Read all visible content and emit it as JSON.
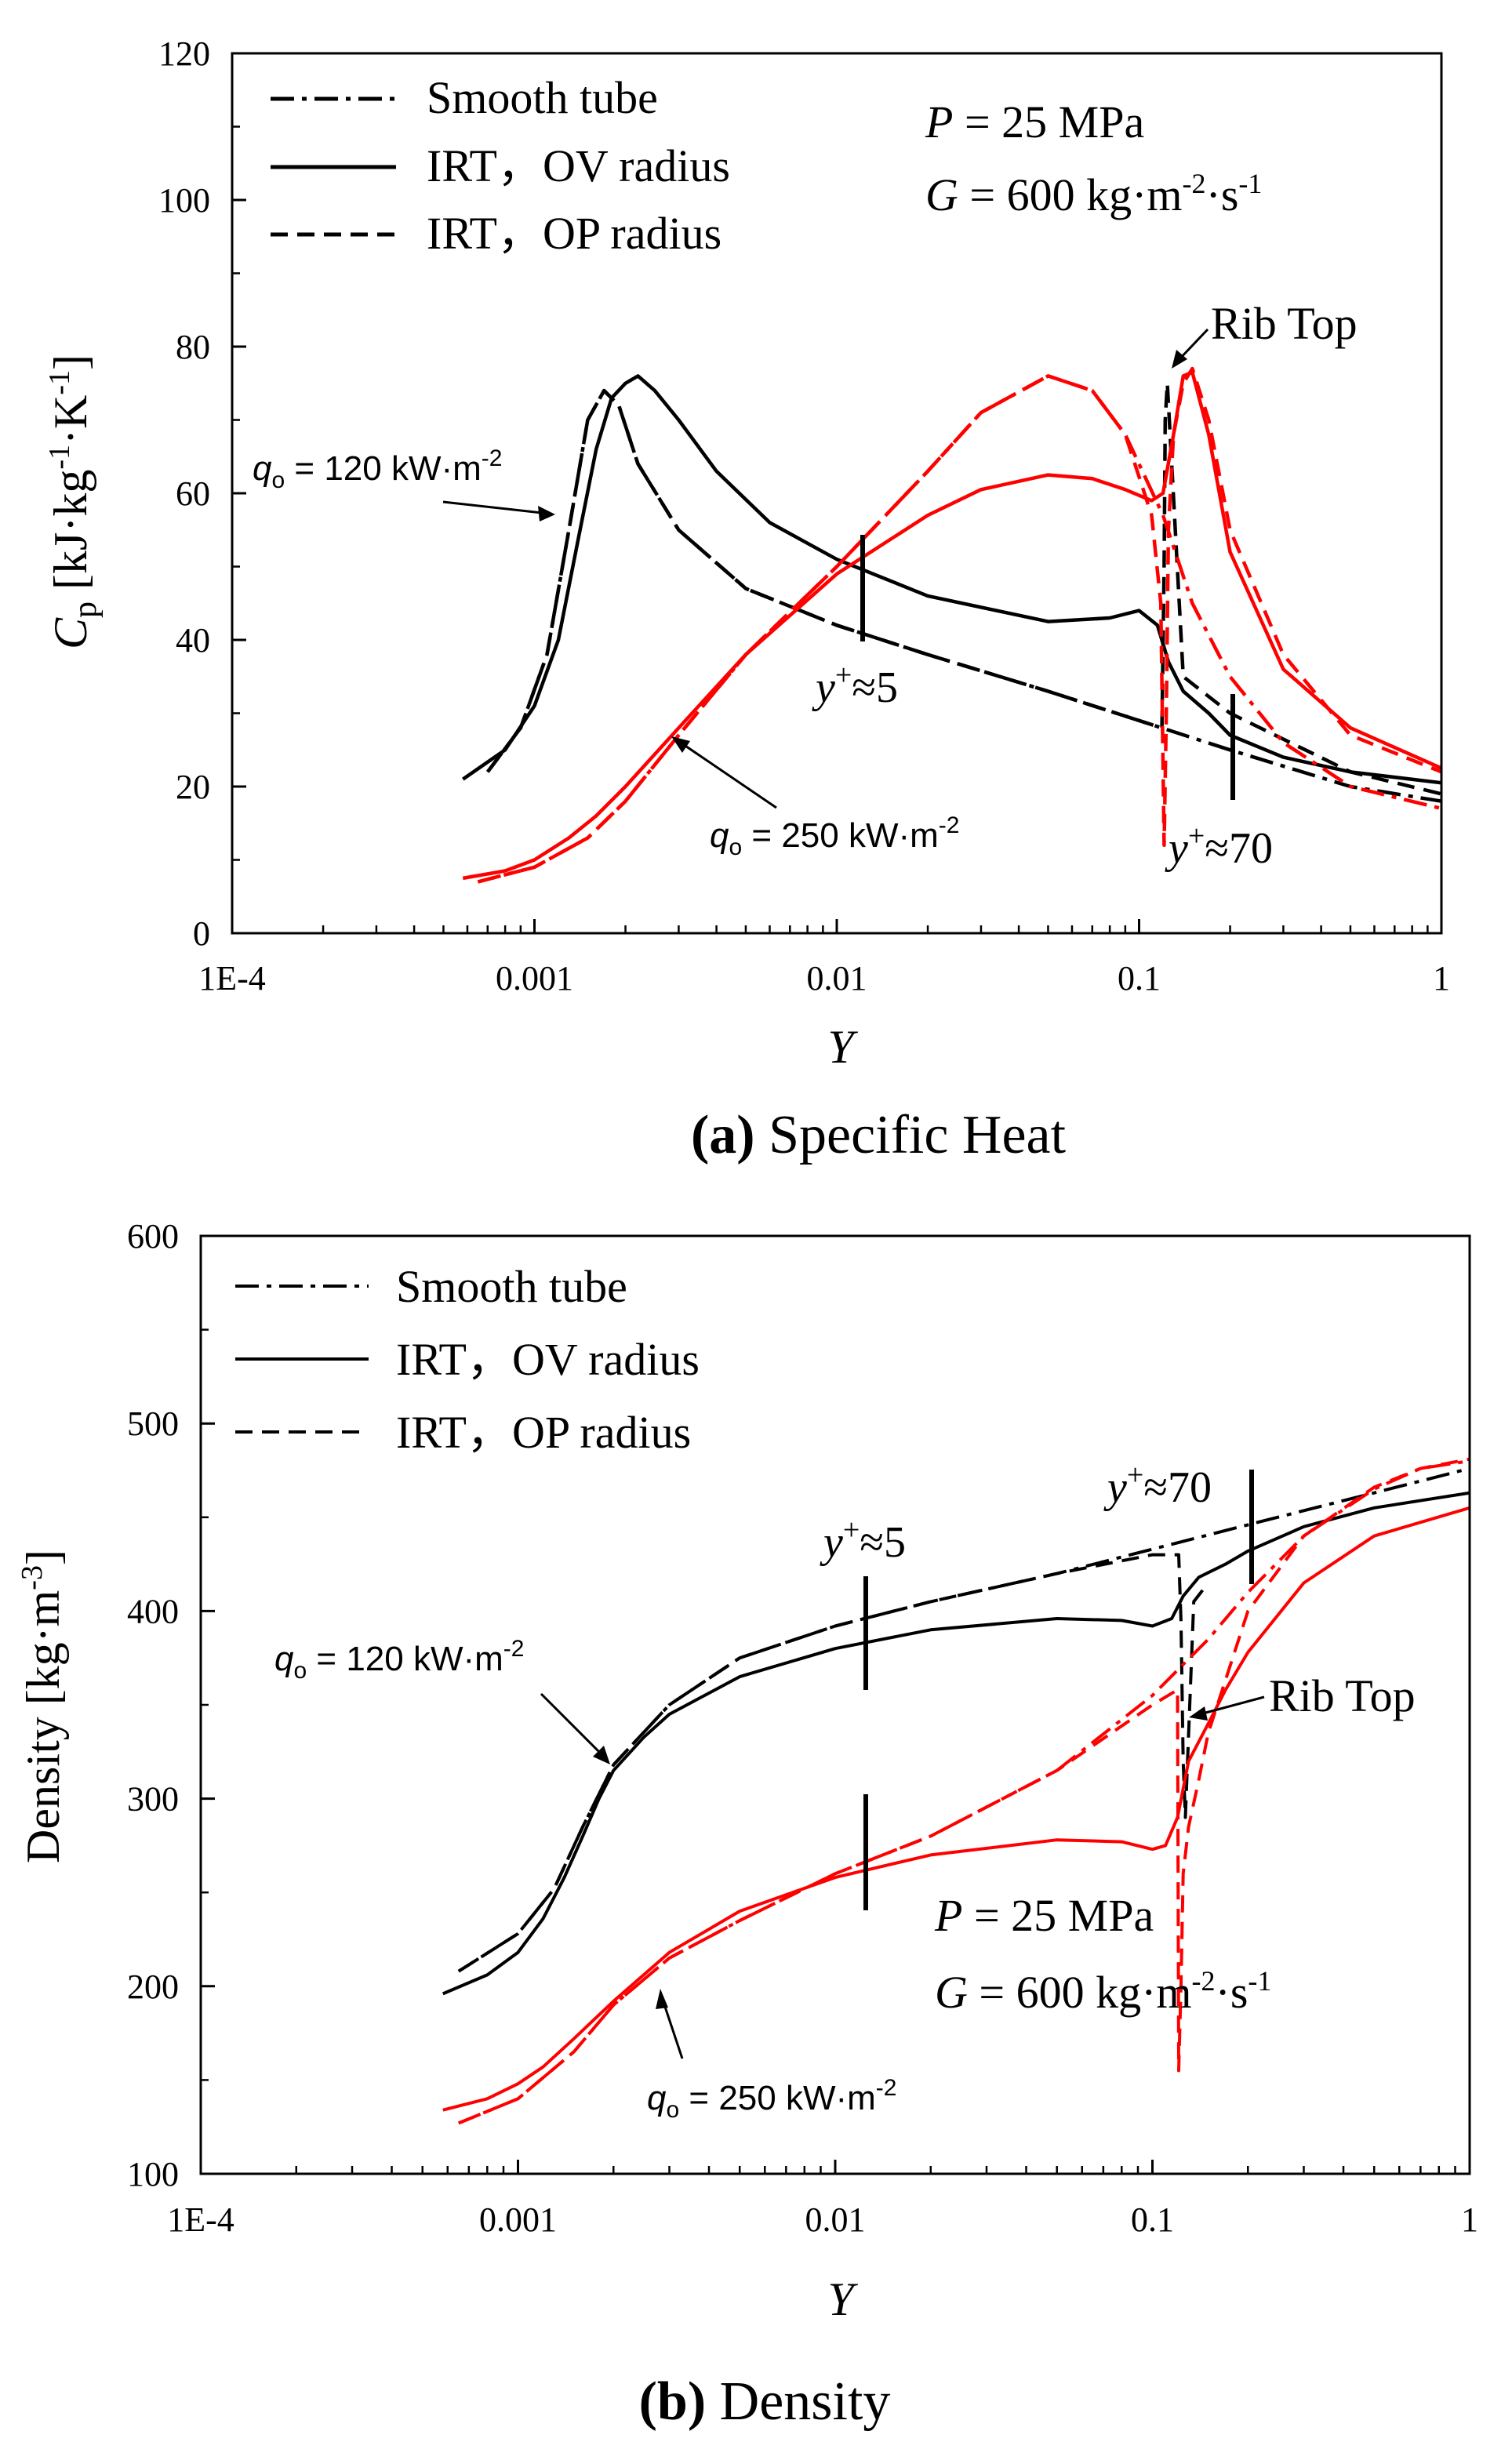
{
  "legend": {
    "smooth": "Smooth tube",
    "ov": "IRT，OV radius",
    "op": "IRT，OP radius"
  },
  "colors": {
    "low_flux": "#000000",
    "high_flux": "#ff0000"
  },
  "conditions": {
    "P_sym": "P",
    "P_val": " = 25 MPa",
    "G_sym": "G",
    "G_val": " = 600 kg·m",
    "G_exp1": "-2",
    "G_mid": "·s",
    "G_exp2": "-1"
  },
  "annotations": {
    "q_sym": "q",
    "q_sub": "o",
    "q120": " = 120 kW·m",
    "q250": " = 250 kW·m",
    "q_exp": "-2",
    "yplus_sym": "y",
    "yplus_sup": "+",
    "yplus5": "≈5",
    "yplus70": "≈70",
    "rib_top": "Rib Top"
  },
  "chart_data": [
    {
      "id": "a",
      "type": "line",
      "caption_bold": "(a)",
      "caption": " Specific Heat",
      "xlabel": "Y",
      "ylabel_sym": "C",
      "ylabel_sub": "p",
      "ylabel_unit": " [kJ·kg",
      "ylabel_exp1": "-1",
      "ylabel_mid": "·K",
      "ylabel_exp2": "-1",
      "ylabel_end": "]",
      "xscale": "log",
      "xlim": [
        0.0001,
        1
      ],
      "ylim": [
        0,
        120
      ],
      "xticks": [
        0.0001,
        0.001,
        0.01,
        0.1,
        1
      ],
      "xtick_labels": [
        "1E-4",
        "0.001",
        "0.01",
        "0.1",
        "1"
      ],
      "yticks": [
        0,
        20,
        40,
        60,
        80,
        100,
        120
      ],
      "ytick_labels": [
        "0",
        "20",
        "40",
        "60",
        "80",
        "100",
        "120"
      ],
      "series": [
        {
          "name": "Smooth tube, q = 120",
          "style": "dashdot",
          "color": "#000000",
          "x": [
            0.0007,
            0.0009,
            0.0011,
            0.0013,
            0.0015,
            0.0017,
            0.0019,
            0.0022,
            0.003,
            0.005,
            0.01,
            0.02,
            0.05,
            0.1,
            0.2,
            0.5,
            1
          ],
          "y": [
            22,
            28,
            38,
            55,
            70,
            74,
            72,
            64,
            55,
            47,
            42,
            38,
            33,
            29,
            25,
            20,
            18
          ]
        },
        {
          "name": "IRT OV, q = 120",
          "style": "solid",
          "color": "#000000",
          "x": [
            0.00058,
            0.0008,
            0.001,
            0.0012,
            0.0014,
            0.0016,
            0.0018,
            0.002,
            0.0022,
            0.0025,
            0.003,
            0.004,
            0.006,
            0.01,
            0.02,
            0.05,
            0.08,
            0.1,
            0.115,
            0.125,
            0.14,
            0.17,
            0.2,
            0.3,
            0.5,
            1
          ],
          "y": [
            21,
            25,
            31,
            40,
            54,
            66,
            73,
            75,
            76,
            74,
            70,
            63,
            56,
            51,
            46,
            42.5,
            43,
            44,
            42,
            37,
            33,
            30,
            27,
            24,
            22,
            20.5
          ]
        },
        {
          "name": "IRT OP, q = 120",
          "style": "dashed",
          "color": "#000000",
          "x": [
            0.0007,
            0.0009,
            0.0011,
            0.0013,
            0.0015,
            0.0017,
            0.0019,
            0.0022,
            0.003,
            0.005,
            0.01,
            0.02,
            0.05,
            0.1,
            0.119,
            0.121,
            0.122,
            0.124,
            0.14,
            0.2,
            0.5,
            1
          ],
          "y": [
            22,
            28,
            38,
            55,
            70,
            74,
            72,
            64,
            55,
            47,
            42,
            38,
            33,
            29,
            28,
            50,
            70,
            75,
            35,
            30,
            22,
            19
          ]
        },
        {
          "name": "Smooth tube, q = 250",
          "style": "dashdot",
          "color": "#ff0000",
          "x": [
            0.00065,
            0.001,
            0.0015,
            0.002,
            0.003,
            0.005,
            0.01,
            0.02,
            0.03,
            0.05,
            0.07,
            0.09,
            0.12,
            0.15,
            0.2,
            0.3,
            0.5,
            1
          ],
          "y": [
            7,
            9,
            13,
            18,
            27,
            38,
            50,
            63,
            71,
            76,
            74,
            68,
            57,
            45,
            35,
            26,
            20,
            17
          ]
        },
        {
          "name": "IRT OV, q = 250",
          "style": "solid",
          "color": "#ff0000",
          "x": [
            0.00058,
            0.0008,
            0.001,
            0.0013,
            0.0016,
            0.002,
            0.003,
            0.005,
            0.01,
            0.02,
            0.03,
            0.05,
            0.07,
            0.09,
            0.11,
            0.12,
            0.13,
            0.14,
            0.15,
            0.17,
            0.2,
            0.3,
            0.5,
            1
          ],
          "y": [
            7.5,
            8.5,
            10,
            13,
            16,
            20,
            28,
            38,
            49,
            57,
            60.5,
            62.5,
            62,
            60.5,
            59,
            60,
            68,
            76,
            76.5,
            68,
            52,
            36,
            28,
            22.5
          ]
        },
        {
          "name": "IRT OP, q = 250",
          "style": "dashed",
          "color": "#ff0000",
          "x": [
            0.00065,
            0.001,
            0.0015,
            0.002,
            0.003,
            0.005,
            0.01,
            0.02,
            0.03,
            0.05,
            0.07,
            0.09,
            0.11,
            0.118,
            0.121,
            0.123,
            0.125,
            0.13,
            0.14,
            0.15,
            0.17,
            0.2,
            0.3,
            0.5,
            1
          ],
          "y": [
            7,
            9,
            13,
            18,
            27,
            38,
            50,
            63,
            71,
            76,
            74,
            68,
            57,
            45,
            12,
            30,
            55,
            68,
            75,
            77,
            70,
            55,
            38,
            27,
            22
          ]
        }
      ]
    },
    {
      "id": "b",
      "type": "line",
      "caption_bold": "(b)",
      "caption": " Density",
      "xlabel": "Y",
      "ylabel": "Density [kg·m",
      "ylabel_exp": "-3",
      "ylabel_end": "]",
      "xscale": "log",
      "xlim": [
        0.0001,
        1
      ],
      "ylim": [
        100,
        600
      ],
      "xticks": [
        0.0001,
        0.001,
        0.01,
        0.1,
        1
      ],
      "xtick_labels": [
        "1E-4",
        "0.001",
        "0.01",
        "0.1",
        "1"
      ],
      "yticks": [
        100,
        200,
        300,
        400,
        500,
        600
      ],
      "ytick_labels": [
        "100",
        "200",
        "300",
        "400",
        "500",
        "600"
      ],
      "series": [
        {
          "name": "Smooth tube, q = 120",
          "style": "dashdot",
          "color": "#000000",
          "x": [
            0.00065,
            0.001,
            0.0013,
            0.0016,
            0.002,
            0.003,
            0.005,
            0.01,
            0.02,
            0.05,
            0.1,
            0.2,
            0.5,
            1
          ],
          "y": [
            208,
            228,
            252,
            285,
            318,
            350,
            375,
            392,
            405,
            420,
            433,
            446,
            463,
            476
          ]
        },
        {
          "name": "IRT OV, q = 120",
          "style": "solid",
          "color": "#000000",
          "x": [
            0.00058,
            0.0008,
            0.001,
            0.0012,
            0.0014,
            0.0016,
            0.0018,
            0.002,
            0.0025,
            0.003,
            0.005,
            0.01,
            0.02,
            0.05,
            0.08,
            0.1,
            0.115,
            0.125,
            0.14,
            0.17,
            0.2,
            0.3,
            0.5,
            1
          ],
          "y": [
            196,
            206,
            218,
            236,
            258,
            280,
            300,
            315,
            333,
            345,
            365,
            380,
            390,
            396,
            395,
            392,
            396,
            408,
            418,
            425,
            432,
            445,
            455,
            463
          ]
        },
        {
          "name": "IRT OP, q = 120",
          "style": "dashed",
          "color": "#000000",
          "x": [
            0.00065,
            0.001,
            0.0013,
            0.0016,
            0.002,
            0.003,
            0.005,
            0.01,
            0.02,
            0.05,
            0.1,
            0.121,
            0.123,
            0.125,
            0.127,
            0.135,
            0.15
          ],
          "y": [
            208,
            228,
            252,
            285,
            318,
            350,
            375,
            392,
            405,
            420,
            430,
            430,
            395,
            320,
            290,
            405,
            415
          ]
        },
        {
          "name": "Smooth tube, q = 250",
          "style": "dashdot",
          "color": "#ff0000",
          "x": [
            0.00065,
            0.001,
            0.0015,
            0.002,
            0.003,
            0.005,
            0.01,
            0.02,
            0.05,
            0.1,
            0.15,
            0.2,
            0.3,
            0.5,
            0.7,
            1
          ],
          "y": [
            127,
            140,
            165,
            190,
            215,
            235,
            260,
            280,
            315,
            355,
            385,
            410,
            440,
            465,
            476,
            480
          ]
        },
        {
          "name": "IRT OV, q = 250",
          "style": "solid",
          "color": "#ff0000",
          "x": [
            0.00058,
            0.0008,
            0.001,
            0.0012,
            0.0015,
            0.002,
            0.003,
            0.005,
            0.01,
            0.02,
            0.05,
            0.08,
            0.1,
            0.11,
            0.12,
            0.13,
            0.15,
            0.17,
            0.2,
            0.3,
            0.5,
            1
          ],
          "y": [
            134,
            140,
            148,
            157,
            172,
            192,
            218,
            240,
            258,
            270,
            278,
            277,
            273,
            275,
            290,
            320,
            340,
            358,
            378,
            415,
            440,
            455
          ]
        },
        {
          "name": "IRT OP, q = 250",
          "style": "dashed",
          "color": "#ff0000",
          "x": [
            0.00065,
            0.001,
            0.0015,
            0.002,
            0.003,
            0.005,
            0.01,
            0.02,
            0.05,
            0.1,
            0.12,
            0.121,
            0.123,
            0.125,
            0.13,
            0.14,
            0.15,
            0.2,
            0.3,
            0.5,
            0.7,
            1
          ],
          "y": [
            127,
            140,
            165,
            190,
            215,
            235,
            260,
            280,
            315,
            350,
            358,
            155,
            200,
            260,
            285,
            310,
            335,
            400,
            440,
            466,
            476,
            481
          ]
        }
      ]
    }
  ]
}
